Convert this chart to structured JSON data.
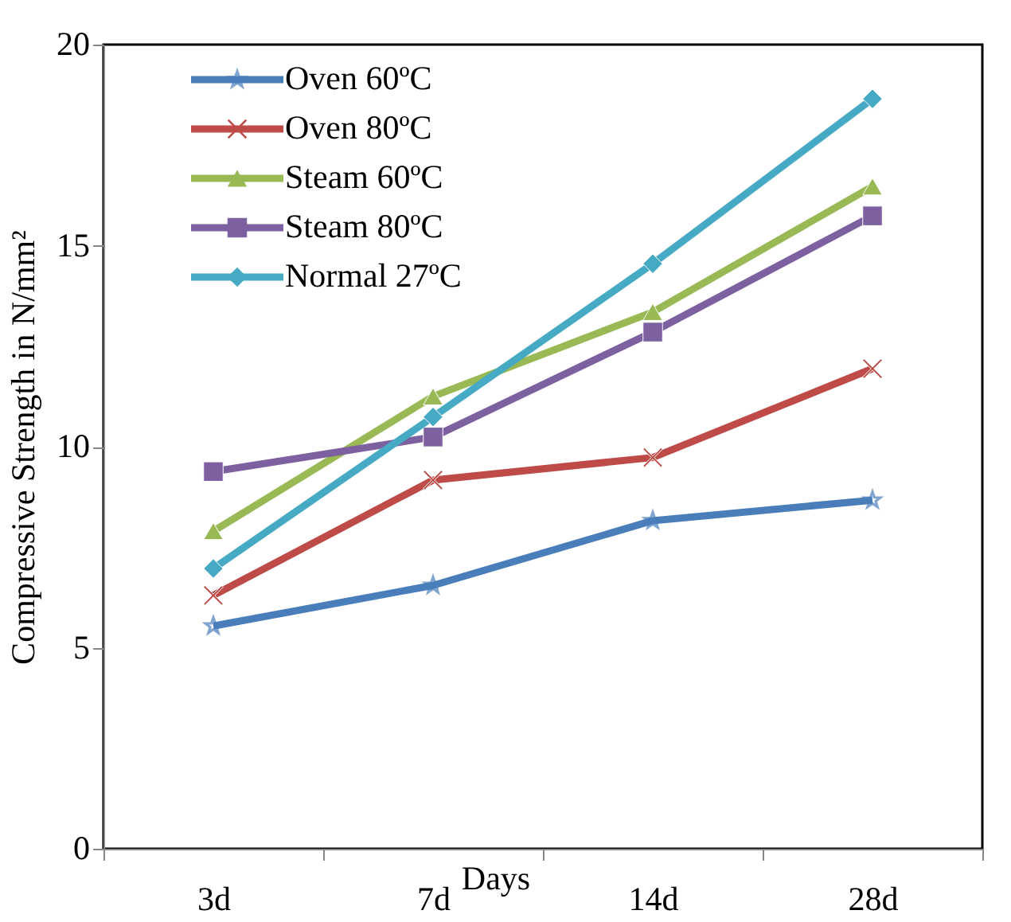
{
  "chart_data": {
    "type": "line",
    "xlabel": "Days",
    "ylabel": "Compressive Strength in N/mm²",
    "categories": [
      "3d",
      "7d",
      "14d",
      "28d"
    ],
    "ylim": [
      0,
      20
    ],
    "yticks": [
      0,
      5,
      10,
      15,
      20
    ],
    "grid": false,
    "legend": "top left",
    "series": [
      {
        "name": "Oven 60ºC",
        "color": "#4a7ebb",
        "marker": "star",
        "values": [
          5.54,
          6.55,
          8.16,
          8.67
        ]
      },
      {
        "name": "Oven 80ºC",
        "color": "#be4b48",
        "marker": "cross",
        "values": [
          6.3,
          9.17,
          9.73,
          11.94
        ]
      },
      {
        "name": "Steam 60ºC",
        "color": "#98b954",
        "marker": "triangle",
        "values": [
          7.9,
          11.25,
          13.35,
          16.47
        ]
      },
      {
        "name": "Steam 80ºC",
        "color": "#7d60a0",
        "marker": "square",
        "values": [
          9.38,
          10.24,
          12.85,
          15.74
        ]
      },
      {
        "name": "Normal 27ºC",
        "color": "#46aac5",
        "marker": "diamond",
        "values": [
          6.97,
          10.74,
          14.55,
          18.65
        ]
      }
    ]
  }
}
